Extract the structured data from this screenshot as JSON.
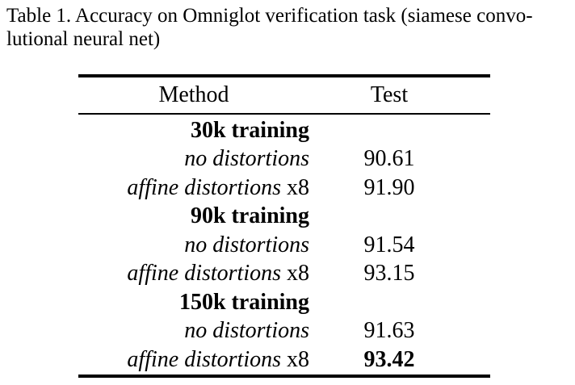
{
  "caption": {
    "line1": "Table 1. Accuracy on Omniglot verification task (siamese convo-",
    "line2": "lutional neural net)"
  },
  "table": {
    "headers": {
      "method": "Method",
      "test": "Test"
    },
    "rows": [
      {
        "kind": "group",
        "method": "30k training",
        "test": "",
        "test_bold": false
      },
      {
        "kind": "entry",
        "method_main": "no distortions",
        "method_suffix": "",
        "test": "90.61",
        "test_bold": false
      },
      {
        "kind": "entry",
        "method_main": "affine distortions",
        "method_suffix": " x8",
        "test": "91.90",
        "test_bold": false
      },
      {
        "kind": "group",
        "method": "90k training",
        "test": "",
        "test_bold": false
      },
      {
        "kind": "entry",
        "method_main": "no distortions",
        "method_suffix": "",
        "test": "91.54",
        "test_bold": false
      },
      {
        "kind": "entry",
        "method_main": "affine distortions",
        "method_suffix": " x8",
        "test": "93.15",
        "test_bold": false
      },
      {
        "kind": "group",
        "method": "150k training",
        "test": "",
        "test_bold": false
      },
      {
        "kind": "entry",
        "method_main": "no distortions",
        "method_suffix": "",
        "test": "91.63",
        "test_bold": false
      },
      {
        "kind": "entry",
        "method_main": "affine distortions",
        "method_suffix": " x8",
        "test": "93.42",
        "test_bold": true
      }
    ]
  },
  "colors": {
    "text": "#000000",
    "background": "#ffffff",
    "rule": "#000000"
  }
}
